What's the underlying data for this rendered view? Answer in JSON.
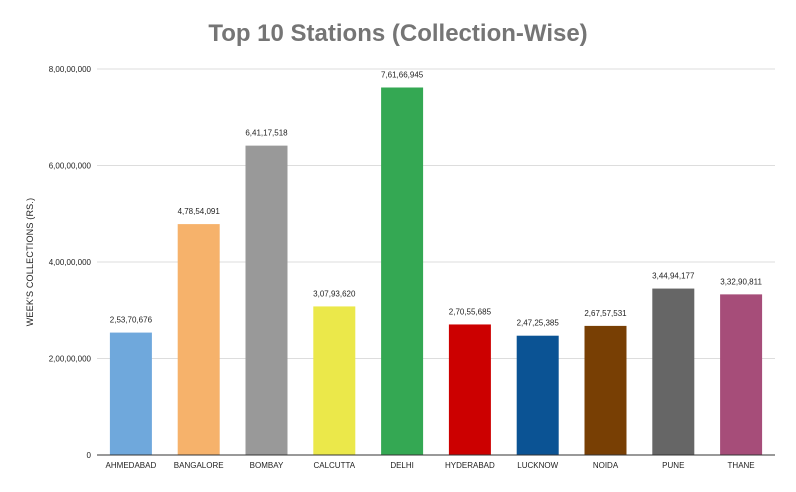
{
  "chart_data": {
    "type": "bar",
    "title": "Top 10 Stations (Collection-Wise)",
    "xlabel": "",
    "ylabel": "WEEK'S COLLECTIONS (RS.)",
    "ylim": [
      0,
      80000000
    ],
    "grid": true,
    "legend": "none",
    "y_ticks": [
      {
        "value": 0,
        "label": "0"
      },
      {
        "value": 20000000,
        "label": "2,00,00,000"
      },
      {
        "value": 40000000,
        "label": "4,00,00,000"
      },
      {
        "value": 60000000,
        "label": "6,00,00,000"
      },
      {
        "value": 80000000,
        "label": "8,00,00,000"
      }
    ],
    "categories": [
      "AHMEDABAD",
      "BANGALORE",
      "BOMBAY",
      "CALCUTTA",
      "DELHI",
      "HYDERABAD",
      "LUCKNOW",
      "NOIDA",
      "PUNE",
      "THANE"
    ],
    "values": [
      25370676,
      47854091,
      64117518,
      30793620,
      76166945,
      27055685,
      24725385,
      26757531,
      34494177,
      33290811
    ],
    "value_labels": [
      "2,53,70,676",
      "4,78,54,091",
      "6,41,17,518",
      "3,07,93,620",
      "7,61,66,945",
      "2,70,55,685",
      "2,47,25,385",
      "2,67,57,531",
      "3,44,94,177",
      "3,32,90,811"
    ],
    "colors": [
      "#6fa8dc",
      "#f6b26b",
      "#999999",
      "#ebe84a",
      "#34a853",
      "#cc0000",
      "#0b5394",
      "#783f04",
      "#666666",
      "#a64d79"
    ]
  }
}
